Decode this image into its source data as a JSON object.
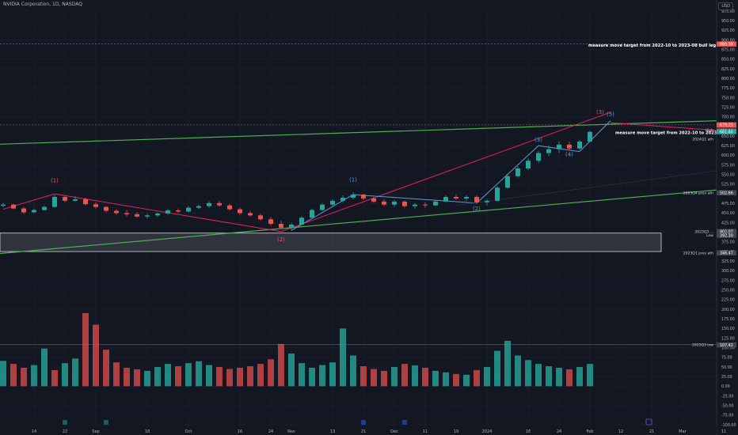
{
  "header": {
    "symbol": "NVIDIA Corporation, 1D, NASDAQ",
    "currency": "USD"
  },
  "colors": {
    "bg": "#131722",
    "grid": "#1c2030",
    "up": "#26a69a",
    "down": "#ef5350",
    "green_line": "#4caf50",
    "red_line": "#e91e63",
    "blue_line": "#5b9bd5",
    "axis_text": "#b2b5be"
  },
  "price_axis": {
    "ticks": [
      "975.00",
      "950.00",
      "925.00",
      "900.00",
      "875.00",
      "850.00",
      "825.00",
      "800.00",
      "775.00",
      "750.00",
      "725.00",
      "700.00",
      "675.00",
      "650.00",
      "625.00",
      "600.00",
      "575.00",
      "550.00",
      "525.00",
      "500.00",
      "475.00",
      "450.00",
      "425.00",
      "400.00",
      "375.00",
      "350.00",
      "325.00",
      "300.00",
      "275.00",
      "250.00",
      "225.00",
      "200.00",
      "175.00",
      "150.00",
      "125.00",
      "100.00",
      "75.00",
      "50.00",
      "25.00",
      "0.00",
      "-25.00",
      "-50.00",
      "-75.00",
      "-100.00"
    ]
  },
  "price_flags": [
    {
      "text": "889.38",
      "price": 889.38,
      "color": "#ef5350"
    },
    {
      "text": "679.25",
      "price": 679.25,
      "color": "#ef5350"
    },
    {
      "text": "666.00",
      "price": 666.0,
      "color": "#434651"
    },
    {
      "text": "664.00",
      "price": 664.0,
      "color": "#434651"
    },
    {
      "text": "661.60",
      "price": 661.6,
      "color": "#26a69a"
    },
    {
      "text": "502.66",
      "price": 502.66,
      "color": "#434651"
    },
    {
      "text": "402.07",
      "price": 402.07,
      "color": "#434651"
    },
    {
      "text": "392.30",
      "price": 392.3,
      "color": "#434651"
    },
    {
      "text": "346.47",
      "price": 346.47,
      "color": "#434651"
    },
    {
      "text": "107.42",
      "price": 107.42,
      "color": "#434651"
    }
  ],
  "level_labels": [
    {
      "text": "High",
      "price": 666.0
    },
    {
      "text": "2024Q1 ath",
      "price": 642
    },
    {
      "text": "2023Q4 prev ath",
      "price": 502
    },
    {
      "text": "2023Q3 ...",
      "price": 402
    },
    {
      "text": "Low",
      "price": 392.3
    },
    {
      "text": "2023Q1 prev ath",
      "price": 346.5
    },
    {
      "text": "2022Q3 low",
      "price": 108
    }
  ],
  "annotations": [
    {
      "text": "measure move target from 2022-10 to 2023-08 bull leg on monthly tf",
      "price": 882
    },
    {
      "text": "measure move target from 2022-10 to 2023-05 bull leg",
      "price": 655
    }
  ],
  "wave_labels": [
    {
      "text": "(1)",
      "idx": 5,
      "price": 530,
      "color": "#ef5350"
    },
    {
      "text": "(2)",
      "idx": 27,
      "price": 377,
      "color": "#ef5350"
    },
    {
      "text": "(1)",
      "idx": 34,
      "price": 532,
      "color": "#5b9bd5"
    },
    {
      "text": "(2)",
      "idx": 46,
      "price": 457,
      "color": "#5b9bd5"
    },
    {
      "text": "(3)",
      "idx": 52,
      "price": 636,
      "color": "#5b9bd5"
    },
    {
      "text": "(4)",
      "idx": 55,
      "price": 598,
      "color": "#5b9bd5"
    },
    {
      "text": "(3)",
      "idx": 58,
      "price": 708,
      "color": "#ef5350"
    },
    {
      "text": "(5)",
      "idx": 59,
      "price": 703,
      "color": "#5b9bd5"
    }
  ],
  "x_axis": {
    "labels": [
      {
        "text": "14",
        "idx": 3
      },
      {
        "text": "22",
        "idx": 6
      },
      {
        "text": "Sep",
        "idx": 9
      },
      {
        "text": "18",
        "idx": 14
      },
      {
        "text": "Oct",
        "idx": 18
      },
      {
        "text": "16",
        "idx": 23
      },
      {
        "text": "24",
        "idx": 26
      },
      {
        "text": "Nov",
        "idx": 28
      },
      {
        "text": "13",
        "idx": 32
      },
      {
        "text": "21",
        "idx": 35
      },
      {
        "text": "Dec",
        "idx": 38
      },
      {
        "text": "11",
        "idx": 41
      },
      {
        "text": "19",
        "idx": 44
      },
      {
        "text": "2024",
        "idx": 47
      },
      {
        "text": "16",
        "idx": 51
      },
      {
        "text": "24",
        "idx": 54
      },
      {
        "text": "Feb",
        "idx": 57
      },
      {
        "text": "12",
        "idx": 60
      },
      {
        "text": "21",
        "idx": 63
      },
      {
        "text": "Mar",
        "idx": 66
      },
      {
        "text": "11",
        "idx": 70
      }
    ]
  },
  "chart_data": {
    "type": "candlestick",
    "title": "NVIDIA Corporation, 1D, NASDAQ",
    "ylim": [
      325,
      985
    ],
    "candles": [
      [
        469,
        476,
        465,
        472
      ],
      [
        472,
        474,
        460,
        462
      ],
      [
        462,
        466,
        448,
        452
      ],
      [
        452,
        462,
        450,
        458
      ],
      [
        458,
        470,
        456,
        466
      ],
      [
        466,
        498,
        464,
        492
      ],
      [
        492,
        496,
        478,
        482
      ],
      [
        482,
        494,
        480,
        486
      ],
      [
        486,
        490,
        470,
        473
      ],
      [
        473,
        478,
        462,
        466
      ],
      [
        466,
        468,
        452,
        456
      ],
      [
        456,
        460,
        446,
        450
      ],
      [
        450,
        458,
        442,
        447
      ],
      [
        447,
        452,
        438,
        441
      ],
      [
        441,
        448,
        436,
        444
      ],
      [
        444,
        452,
        440,
        449
      ],
      [
        449,
        460,
        446,
        457
      ],
      [
        457,
        462,
        450,
        454
      ],
      [
        454,
        468,
        452,
        464
      ],
      [
        464,
        472,
        460,
        468
      ],
      [
        468,
        480,
        464,
        476
      ],
      [
        476,
        482,
        466,
        470
      ],
      [
        470,
        474,
        456,
        460
      ],
      [
        460,
        464,
        446,
        450
      ],
      [
        450,
        456,
        440,
        444
      ],
      [
        444,
        448,
        430,
        434
      ],
      [
        434,
        440,
        418,
        422
      ],
      [
        422,
        430,
        408,
        412
      ],
      [
        412,
        424,
        405,
        420
      ],
      [
        420,
        442,
        418,
        438
      ],
      [
        438,
        462,
        436,
        458
      ],
      [
        458,
        476,
        456,
        472
      ],
      [
        472,
        486,
        468,
        482
      ],
      [
        482,
        496,
        478,
        490
      ],
      [
        490,
        504,
        486,
        498
      ],
      [
        498,
        500,
        484,
        488
      ],
      [
        488,
        492,
        476,
        480
      ],
      [
        480,
        486,
        468,
        472
      ],
      [
        472,
        484,
        466,
        480
      ],
      [
        480,
        482,
        464,
        468
      ],
      [
        468,
        476,
        462,
        472
      ],
      [
        472,
        478,
        464,
        470
      ],
      [
        470,
        484,
        468,
        480
      ],
      [
        480,
        496,
        478,
        492
      ],
      [
        492,
        498,
        484,
        488
      ],
      [
        488,
        496,
        482,
        492
      ],
      [
        492,
        496,
        474,
        478
      ],
      [
        478,
        486,
        470,
        482
      ],
      [
        482,
        520,
        480,
        516
      ],
      [
        516,
        552,
        514,
        546
      ],
      [
        546,
        572,
        542,
        566
      ],
      [
        566,
        592,
        562,
        586
      ],
      [
        586,
        612,
        580,
        606
      ],
      [
        606,
        626,
        598,
        616
      ],
      [
        616,
        636,
        606,
        628
      ],
      [
        628,
        636,
        612,
        618
      ],
      [
        618,
        640,
        614,
        636
      ],
      [
        636,
        664,
        634,
        661
      ]
    ],
    "volume": [
      66,
      58,
      48,
      55,
      98,
      42,
      60,
      72,
      190,
      160,
      95,
      62,
      48,
      44,
      40,
      50,
      58,
      52,
      60,
      65,
      55,
      50,
      45,
      48,
      52,
      58,
      70,
      110,
      85,
      60,
      48,
      55,
      62,
      150,
      80,
      52,
      45,
      40,
      50,
      58,
      54,
      48,
      40,
      36,
      32,
      30,
      42,
      50,
      92,
      118,
      80,
      68,
      58,
      52,
      48,
      44,
      50,
      58
    ],
    "volume_up": [
      1,
      0,
      0,
      1,
      1,
      0,
      1,
      1,
      0,
      0,
      0,
      0,
      0,
      0,
      1,
      1,
      1,
      0,
      1,
      1,
      1,
      0,
      0,
      0,
      0,
      0,
      0,
      0,
      1,
      1,
      1,
      1,
      1,
      1,
      1,
      0,
      0,
      0,
      1,
      0,
      1,
      0,
      1,
      1,
      0,
      1,
      0,
      1,
      1,
      1,
      1,
      1,
      1,
      1,
      1,
      0,
      1,
      1
    ]
  }
}
